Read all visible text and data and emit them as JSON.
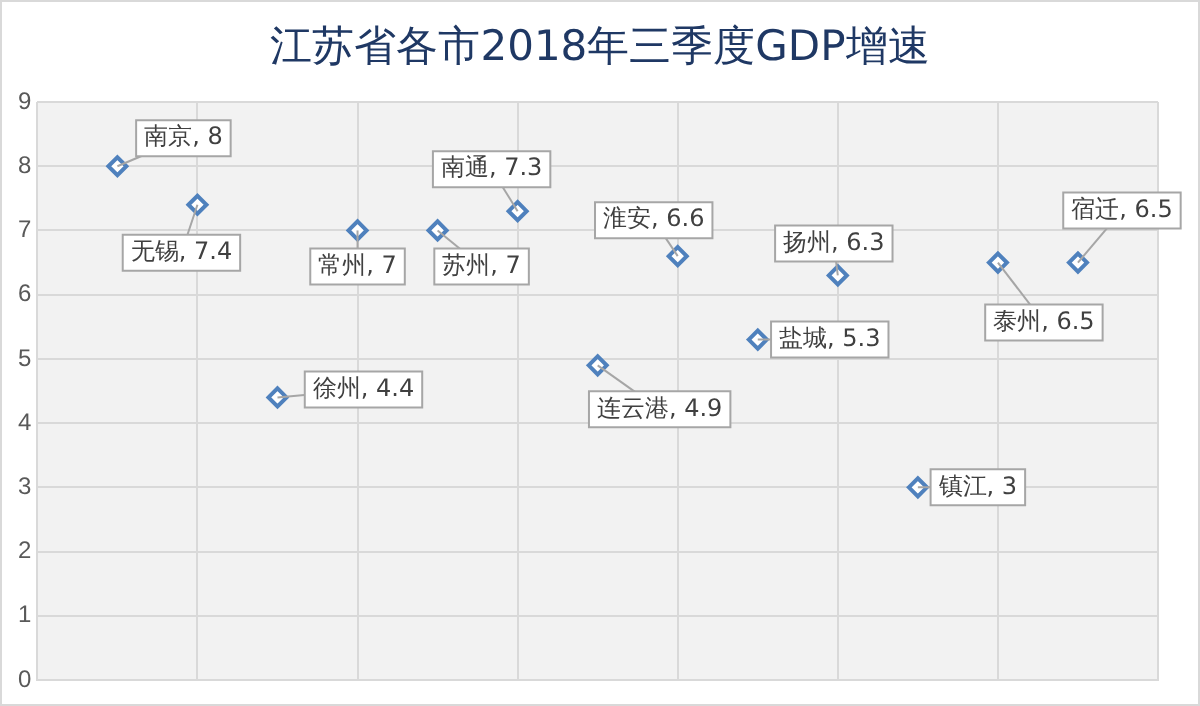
{
  "chart_data": {
    "type": "scatter",
    "title": "江苏省各市2018年三季度GDP增速",
    "categories": [
      null,
      null,
      null,
      null,
      null,
      null,
      null,
      null,
      null,
      null,
      null,
      null,
      null
    ],
    "values": [
      8,
      7.4,
      4.4,
      7,
      7,
      7.3,
      4.9,
      6.6,
      5.3,
      6.3,
      3,
      6.5,
      6.5
    ],
    "value_labels": [
      "南京, 8",
      "无锡, 7.4",
      "徐州, 4.4",
      "常州, 7",
      "苏州, 7",
      "南通, 7.3",
      "连云港, 4.9",
      "淮安, 6.6",
      "盐城, 5.3",
      "扬州, 6.3",
      "镇江, 3",
      "泰州, 6.5",
      "宿迁, 6.5"
    ],
    "color": "#4f81bd",
    "marker": "diamond",
    "ylim": [
      0,
      9
    ],
    "yticks": [
      0,
      1,
      2,
      3,
      4,
      5,
      6,
      7,
      8,
      9
    ],
    "grid": true,
    "legend": false,
    "tick_labels": "y"
  }
}
